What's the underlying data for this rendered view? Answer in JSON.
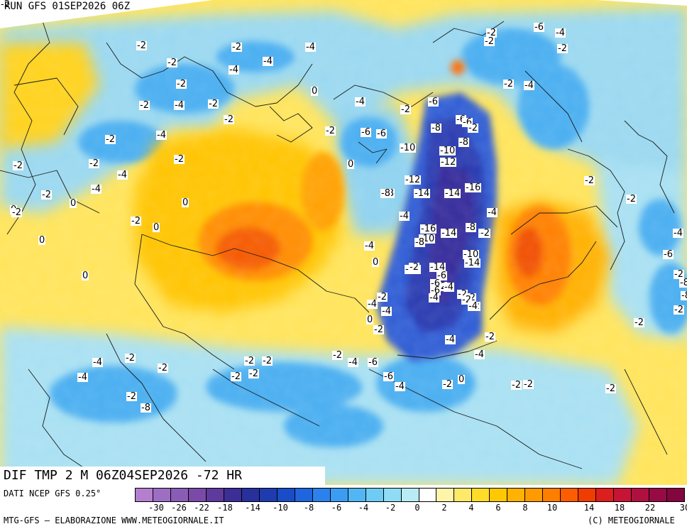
{
  "header": {
    "run_title": "RUN GFS 01SEP2026 06Z"
  },
  "map": {
    "forecast_title": "DIF TMP 2 M 06Z04SEP2026 -72 HR",
    "labels": [
      {
        "text": "-2"
      },
      {
        "text": "-6"
      },
      {
        "text": "-4"
      },
      {
        "text": "-2"
      },
      {
        "text": "-2"
      },
      {
        "text": "-2"
      },
      {
        "text": "-2"
      },
      {
        "text": "-4"
      },
      {
        "text": "-2"
      },
      {
        "text": "-4"
      },
      {
        "text": "-4"
      },
      {
        "text": "-2"
      },
      {
        "text": "-4"
      },
      {
        "text": "-2"
      },
      {
        "text": "0"
      },
      {
        "text": "-2"
      },
      {
        "text": "-4"
      },
      {
        "text": "-2"
      },
      {
        "text": "-6"
      },
      {
        "text": "-4"
      },
      {
        "text": "-6"
      },
      {
        "text": "-2"
      },
      {
        "text": "-2"
      },
      {
        "text": "-6"
      },
      {
        "text": "-2"
      },
      {
        "text": "-4"
      },
      {
        "text": "-6"
      },
      {
        "text": "-6"
      },
      {
        "text": "-8"
      },
      {
        "text": "-2"
      },
      {
        "text": "-8"
      },
      {
        "text": "-10"
      },
      {
        "text": "-10"
      },
      {
        "text": "-12"
      },
      {
        "text": "0"
      },
      {
        "text": "-2"
      },
      {
        "text": "-2"
      },
      {
        "text": "-4"
      },
      {
        "text": "-2"
      },
      {
        "text": "-12"
      },
      {
        "text": "-8"
      },
      {
        "text": "-14"
      },
      {
        "text": "-14"
      },
      {
        "text": "-16"
      },
      {
        "text": "-2"
      },
      {
        "text": "-2"
      },
      {
        "text": "-2"
      },
      {
        "text": "0"
      },
      {
        "text": "-2"
      },
      {
        "text": "-4"
      },
      {
        "text": "-4"
      },
      {
        "text": "0"
      },
      {
        "text": "-16"
      },
      {
        "text": "-14"
      },
      {
        "text": "-8"
      },
      {
        "text": "-2"
      },
      {
        "text": "0"
      },
      {
        "text": "-8"
      },
      {
        "text": "-4"
      },
      {
        "text": "0"
      },
      {
        "text": "-10"
      },
      {
        "text": "-4"
      },
      {
        "text": "-2"
      },
      {
        "text": "-12"
      },
      {
        "text": "-14"
      },
      {
        "text": "-10"
      },
      {
        "text": "-14"
      },
      {
        "text": "-6"
      },
      {
        "text": "-8"
      },
      {
        "text": "0"
      },
      {
        "text": "-2"
      },
      {
        "text": "-6"
      },
      {
        "text": "-2"
      },
      {
        "text": "-8"
      },
      {
        "text": "-4"
      },
      {
        "text": "0"
      },
      {
        "text": "-2"
      },
      {
        "text": "-8"
      },
      {
        "text": "-2"
      },
      {
        "text": "0"
      },
      {
        "text": "0"
      },
      {
        "text": "-4"
      },
      {
        "text": "-4"
      },
      {
        "text": "-2"
      },
      {
        "text": "-2"
      },
      {
        "text": "-4"
      },
      {
        "text": "-2"
      },
      {
        "text": "-2"
      },
      {
        "text": "-6"
      },
      {
        "text": "-6"
      },
      {
        "text": "-4"
      },
      {
        "text": "-2"
      },
      {
        "text": "-2"
      },
      {
        "text": "-2"
      },
      {
        "text": "-2"
      },
      {
        "text": "-2"
      },
      {
        "text": "-4"
      },
      {
        "text": "-2"
      },
      {
        "text": "-4"
      },
      {
        "text": "-4"
      },
      {
        "text": "-2"
      },
      {
        "text": "-4"
      },
      {
        "text": "-6"
      },
      {
        "text": "-2"
      },
      {
        "text": "-2"
      },
      {
        "text": "-6"
      },
      {
        "text": "-2"
      },
      {
        "text": "-2"
      },
      {
        "text": "-4"
      },
      {
        "text": "-2"
      },
      {
        "text": "0"
      },
      {
        "text": "-2"
      },
      {
        "text": "-2"
      },
      {
        "text": "-2"
      },
      {
        "text": "-2"
      },
      {
        "text": "-4"
      },
      {
        "text": "-4"
      },
      {
        "text": "-2"
      },
      {
        "text": "-2"
      },
      {
        "text": "-8"
      },
      {
        "text": "-4"
      },
      {
        "text": "-2"
      }
    ]
  },
  "footer": {
    "data_source": "DATI NCEP GFS 0.25°",
    "credit": "MTG-GFS — ELABORAZIONE WWW.METEOGIORNALE.IT",
    "copyright": "(C) METEOGIORNALE"
  },
  "legend": {
    "colors": [
      "#b57fd0",
      "#9e6ec4",
      "#8a5cb5",
      "#7a4aa8",
      "#5e3a9c",
      "#3d2e95",
      "#28309c",
      "#1e3caf",
      "#1a4cc8",
      "#1f66de",
      "#2b82ec",
      "#3a9cf2",
      "#52b6f4",
      "#6ecbf4",
      "#8fdcf4",
      "#b7ecf6",
      "#ffffff",
      "#fff5a8",
      "#ffe968",
      "#ffdc28",
      "#ffc800",
      "#ffb200",
      "#ff9a00",
      "#ff7e00",
      "#ff5e00",
      "#f03c00",
      "#dd1e1e",
      "#c81434",
      "#b01040",
      "#980a44",
      "#84063e"
    ],
    "tick_labels": [
      "-30",
      "-26",
      "-22",
      "-18",
      "-14",
      "-10",
      "-8",
      "-6",
      "-4",
      "-2",
      "0",
      "2",
      "4",
      "6",
      "8",
      "10",
      "14",
      "18",
      "22",
      "30"
    ]
  }
}
